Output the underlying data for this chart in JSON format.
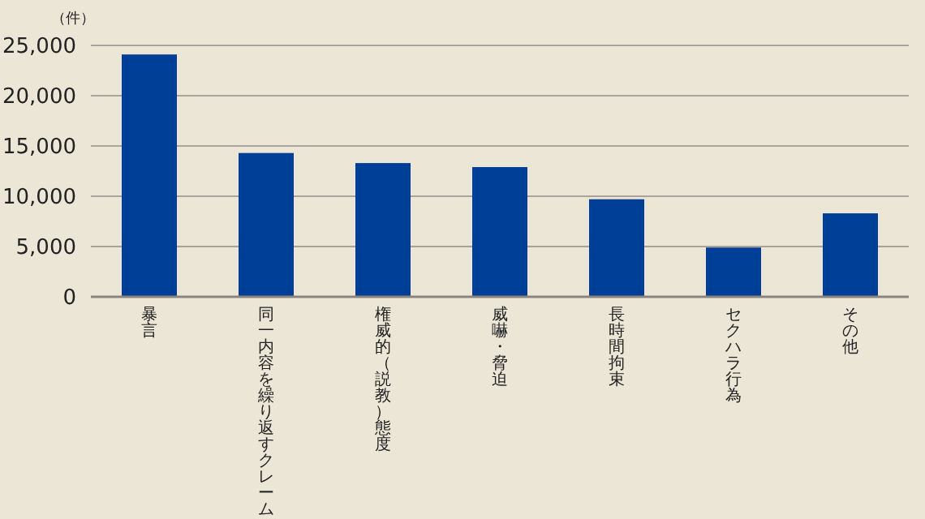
{
  "chart_data": {
    "type": "bar",
    "ylabel": "（件）",
    "categories": [
      "暴言",
      "同一内容を繰り返すクレーム",
      "権威的（説教）態度",
      "威嚇・脅迫",
      "長時間拘束",
      "セクハラ行為",
      "その他"
    ],
    "values": [
      24100,
      14300,
      13300,
      12900,
      9700,
      4900,
      8300
    ],
    "color": "#003f98",
    "ylim": [
      0,
      25000
    ],
    "yticks": [
      {
        "value": 0,
        "label": "0"
      },
      {
        "value": 5000,
        "label": "5,000"
      },
      {
        "value": 10000,
        "label": "10,000"
      },
      {
        "value": 15000,
        "label": "15,000"
      },
      {
        "value": 20000,
        "label": "20,000"
      },
      {
        "value": 25000,
        "label": "25,000"
      }
    ],
    "grid": "y"
  }
}
